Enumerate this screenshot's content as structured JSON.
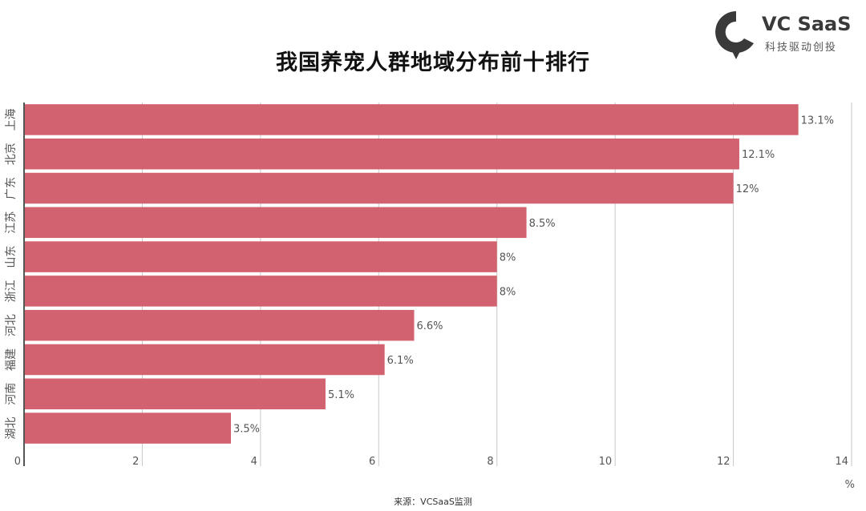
{
  "title": "我国养宠人群地域分布前十排行",
  "logo": {
    "name": "VC SaaS",
    "slogan": "科技驱动创投"
  },
  "source": "来源：VCSaaS监测",
  "colors": {
    "bar": "#d2626f",
    "grid": "#c8c8c8",
    "axis": "#555555",
    "text": "#555555"
  },
  "chart_data": {
    "type": "bar",
    "orientation": "horizontal",
    "title": "我国养宠人群地域分布前十排行",
    "categories": [
      "上海",
      "北京",
      "广东",
      "江苏",
      "山东",
      "浙江",
      "河北",
      "福建",
      "河南",
      "湖北"
    ],
    "values": [
      13.1,
      12.1,
      12,
      8.5,
      8,
      8,
      6.6,
      6.1,
      5.1,
      3.5
    ],
    "value_labels": [
      "13.1%",
      "12.1%",
      "12%",
      "8.5%",
      "8%",
      "8%",
      "6.6%",
      "6.1%",
      "5.1%",
      "3.5%"
    ],
    "x_ticks": [
      0,
      2,
      4,
      6,
      8,
      10,
      12,
      14
    ],
    "xlim": [
      0,
      14
    ],
    "x_unit": "%",
    "grid": true
  }
}
